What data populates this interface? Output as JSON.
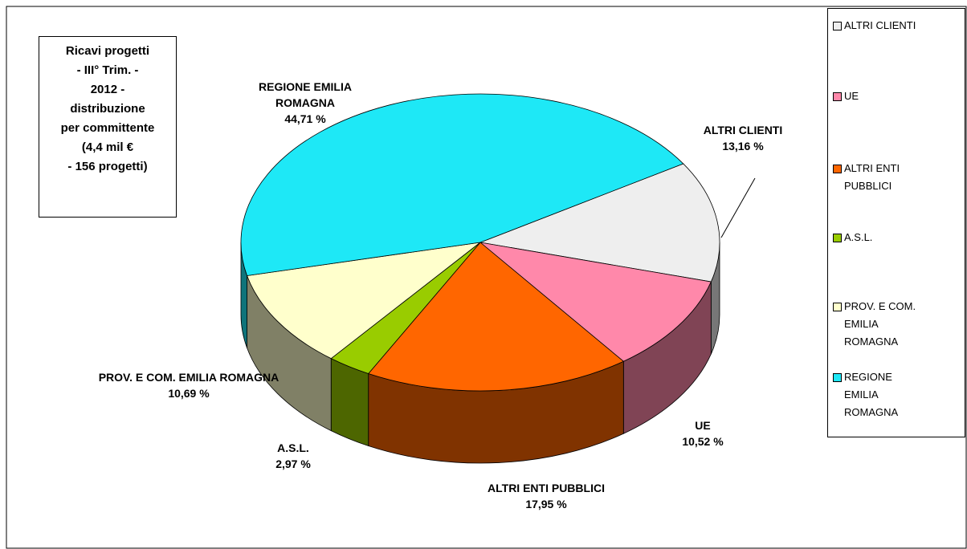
{
  "chart_data": {
    "type": "pie3d",
    "title": "Ricavi progetti\n- III° Trim. -\n2012 -\ndistribuzione\nper committente\n(4,4 mil €\n-  156 progetti)",
    "categories": [
      "ALTRI CLIENTI",
      "UE",
      "ALTRI ENTI PUBBLICI",
      "A.S.L.",
      "PROV. E COM. EMILIA ROMAGNA",
      "REGIONE EMILIA ROMAGNA"
    ],
    "values": [
      13.16,
      10.52,
      17.95,
      2.97,
      10.69,
      44.71
    ],
    "value_labels": [
      "13,16 %",
      "10,52 %",
      "17,95 %",
      "2,97 %",
      "10,69 %",
      "44,71 %"
    ],
    "colors": [
      "#eeeeee",
      "#ff88aa",
      "#ff6600",
      "#99cc00",
      "#ffffcc",
      "#1ee8f6"
    ],
    "legend": "right"
  }
}
